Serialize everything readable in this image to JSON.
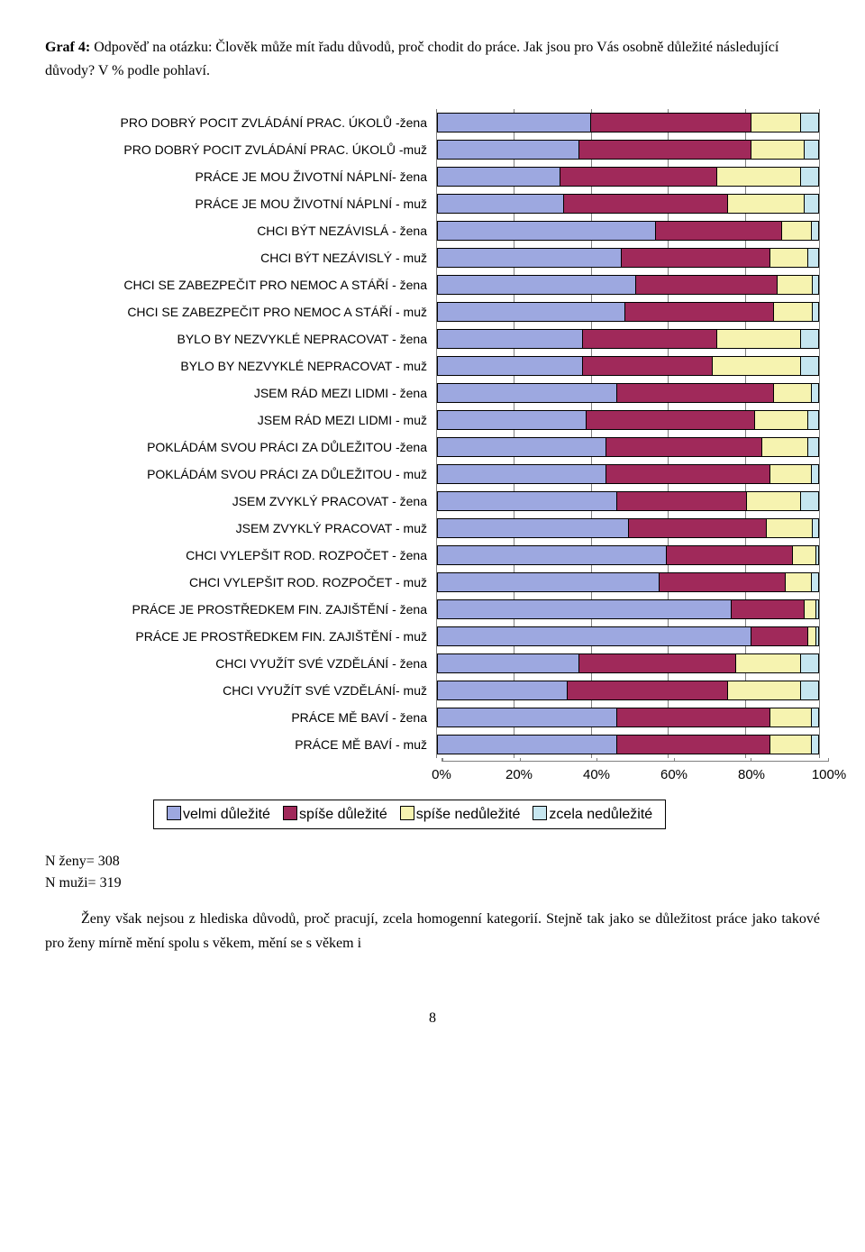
{
  "title_bold": "Graf 4:",
  "title_rest": " Odpověď na otázku: Člověk může mít řadu důvodů, proč chodit do práce. Jak jsou pro Vás osobně důležité následující důvody? V % podle pohlaví.",
  "chart": {
    "type": "stacked-bar-horizontal",
    "xlim": [
      0,
      100
    ],
    "xtick_step": 20,
    "xticks": [
      "0%",
      "20%",
      "40%",
      "60%",
      "80%",
      "100%"
    ],
    "grid_color": "#808080",
    "background_color": "#ffffff",
    "label_fontsize": 14,
    "tick_fontsize": 15,
    "series": [
      {
        "key": "velmi",
        "label": "velmi důležité",
        "color": "#9da8e0"
      },
      {
        "key": "spise",
        "label": "spíše důležité",
        "color": "#a0295a"
      },
      {
        "key": "spise_ne",
        "label": "spíše nedůležité",
        "color": "#f6f3b0"
      },
      {
        "key": "zcela_ne",
        "label": "zcela nedůležité",
        "color": "#c6e6f0"
      }
    ],
    "rows": [
      {
        "label": "PRO DOBRÝ POCIT ZVLÁDÁNÍ PRAC. ÚKOLŮ -žena",
        "v": [
          40,
          42,
          13,
          5
        ]
      },
      {
        "label": "PRO DOBRÝ POCIT ZVLÁDÁNÍ PRAC. ÚKOLŮ -muž",
        "v": [
          37,
          45,
          14,
          4
        ]
      },
      {
        "label": "PRÁCE JE MOU ŽIVOTNÍ NÁPLNÍ- žena",
        "v": [
          32,
          41,
          22,
          5
        ]
      },
      {
        "label": "PRÁCE JE MOU ŽIVOTNÍ NÁPLNÍ - muž",
        "v": [
          33,
          43,
          20,
          4
        ]
      },
      {
        "label": "CHCI BÝT NEZÁVISLÁ - žena",
        "v": [
          57,
          33,
          8,
          2
        ]
      },
      {
        "label": "CHCI BÝT NEZÁVISLÝ - muž",
        "v": [
          48,
          39,
          10,
          3
        ]
      },
      {
        "label": "CHCI SE ZABEZPEČIT PRO NEMOC A STÁŘÍ - žena",
        "v": [
          52,
          37,
          9,
          2
        ]
      },
      {
        "label": "CHCI SE ZABEZPEČIT PRO NEMOC A STÁŘÍ - muž",
        "v": [
          49,
          39,
          10,
          2
        ]
      },
      {
        "label": "BYLO BY NEZVYKLÉ NEPRACOVAT - žena",
        "v": [
          38,
          35,
          22,
          5
        ]
      },
      {
        "label": "BYLO BY NEZVYKLÉ NEPRACOVAT - muž",
        "v": [
          38,
          34,
          23,
          5
        ]
      },
      {
        "label": "JSEM RÁD MEZI LIDMI - žena",
        "v": [
          47,
          41,
          10,
          2
        ]
      },
      {
        "label": "JSEM RÁD MEZI LIDMI - muž",
        "v": [
          39,
          44,
          14,
          3
        ]
      },
      {
        "label": "POKLÁDÁM SVOU PRÁCI ZA DŮLEŽITOU -žena",
        "v": [
          44,
          41,
          12,
          3
        ]
      },
      {
        "label": "POKLÁDÁM SVOU PRÁCI ZA DŮLEŽITOU - muž",
        "v": [
          44,
          43,
          11,
          2
        ]
      },
      {
        "label": "JSEM ZVYKLÝ PRACOVAT - žena",
        "v": [
          47,
          34,
          14,
          5
        ]
      },
      {
        "label": "JSEM ZVYKLÝ PRACOVAT - muž",
        "v": [
          50,
          36,
          12,
          2
        ]
      },
      {
        "label": "CHCI VYLEPŠIT ROD. ROZPOČET - žena",
        "v": [
          60,
          33,
          6,
          1
        ]
      },
      {
        "label": "CHCI VYLEPŠIT ROD. ROZPOČET - muž",
        "v": [
          58,
          33,
          7,
          2
        ]
      },
      {
        "label": "PRÁCE JE PROSTŘEDKEM FIN. ZAJIŠTĚNÍ - žena",
        "v": [
          77,
          19,
          3,
          1
        ]
      },
      {
        "label": "PRÁCE JE PROSTŘEDKEM FIN. ZAJIŠTĚNÍ - muž",
        "v": [
          82,
          15,
          2,
          1
        ]
      },
      {
        "label": "CHCI VYUŽÍT SVÉ VZDĚLÁNÍ - žena",
        "v": [
          37,
          41,
          17,
          5
        ]
      },
      {
        "label": "CHCI VYUŽÍT SVÉ VZDĚLÁNÍ- muž",
        "v": [
          34,
          42,
          19,
          5
        ]
      },
      {
        "label": "PRÁCE MĚ BAVÍ -  žena",
        "v": [
          47,
          40,
          11,
          2
        ]
      },
      {
        "label": "PRÁCE MĚ BAVÍ - muž",
        "v": [
          47,
          40,
          11,
          2
        ]
      }
    ]
  },
  "notes_line1": "N ženy= 308",
  "notes_line2": "N muži= 319",
  "paragraph": "Ženy však nejsou z hlediska důvodů, proč pracují, zcela homogenní kategorií. Stejně tak jako se důležitost práce jako takové pro ženy mírně mění spolu s věkem, mění se s věkem i",
  "page_number": "8"
}
